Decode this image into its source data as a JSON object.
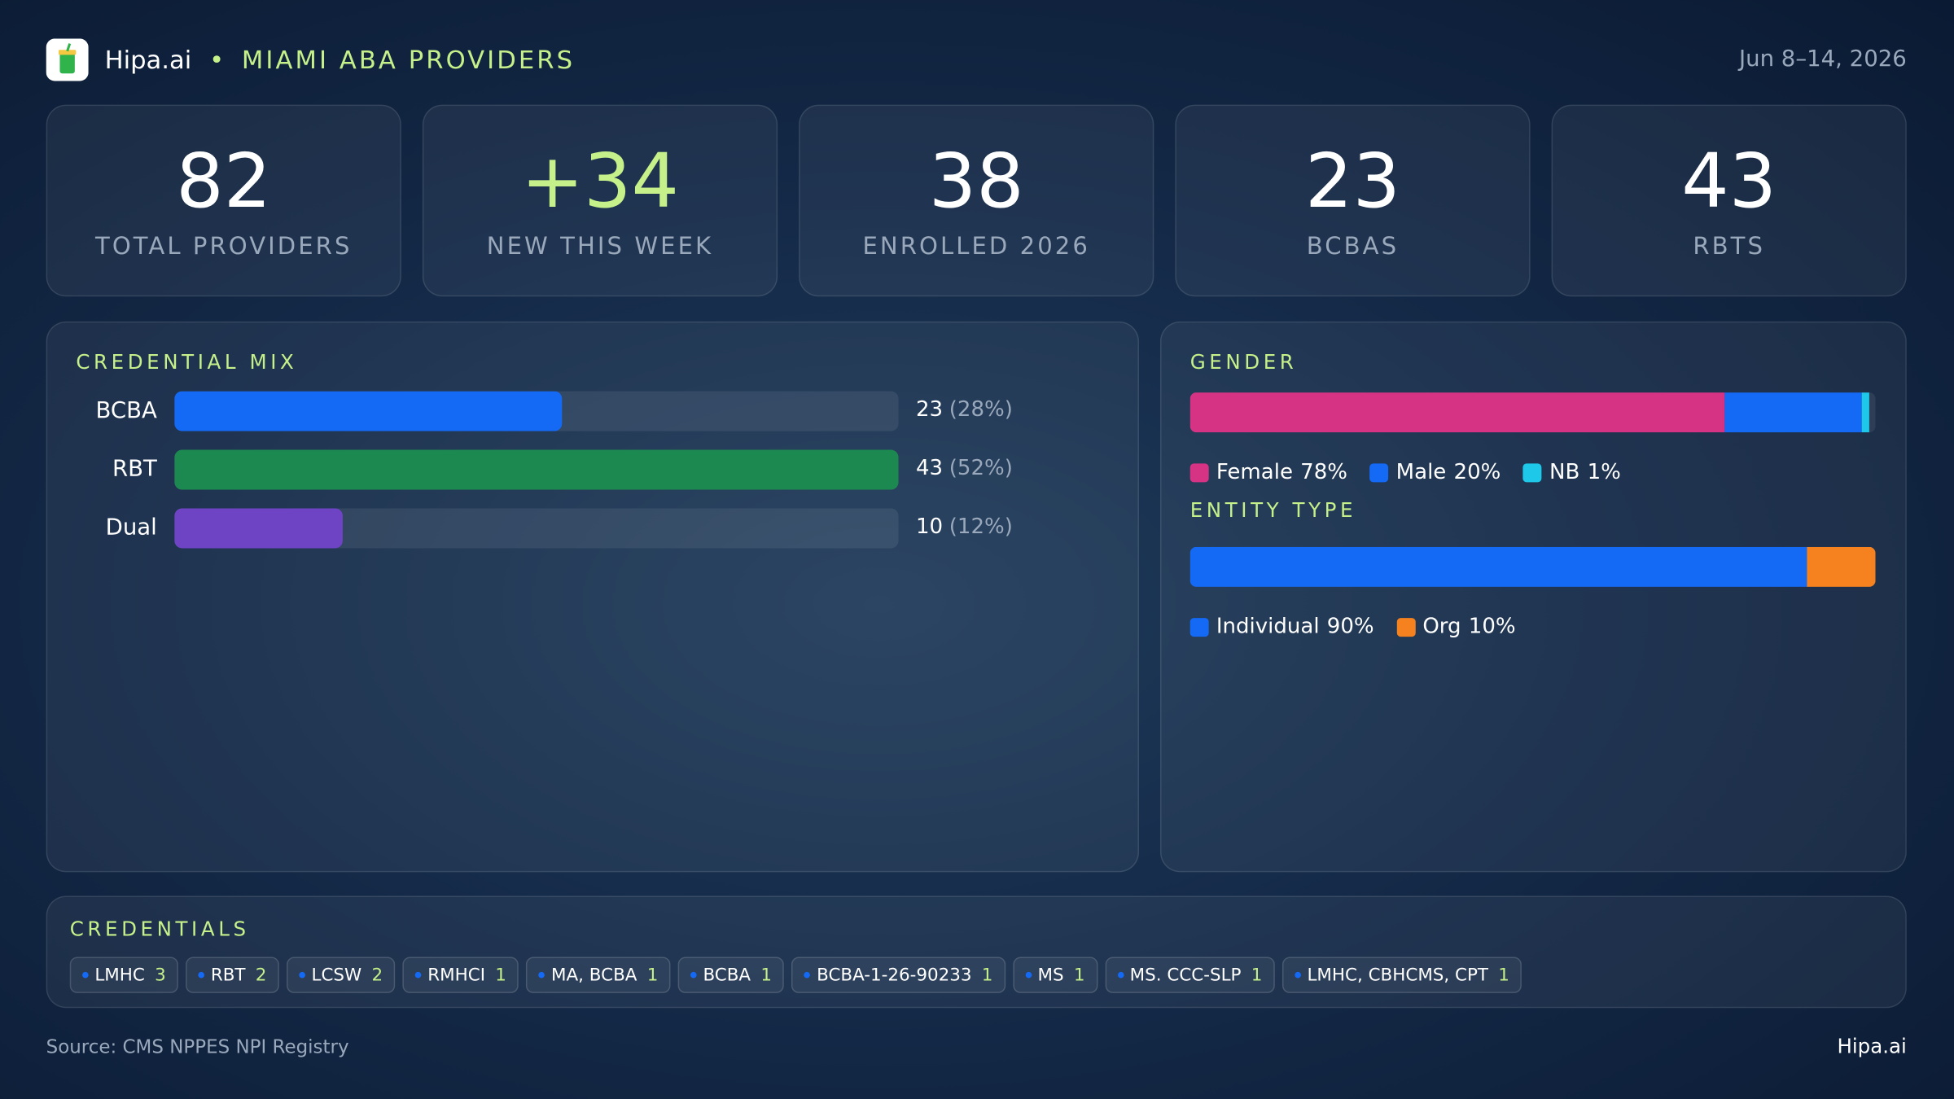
{
  "header": {
    "brand": "Hipa.ai",
    "title": "MIAMI ABA PROVIDERS",
    "date": "Jun 8–14, 2026"
  },
  "kpis": [
    {
      "value": 82,
      "label": "TOTAL PROVIDERS"
    },
    {
      "value": "+34",
      "label": "NEW THIS WEEK"
    },
    {
      "value": 38,
      "label": "ENROLLED 2026"
    },
    {
      "value": 23,
      "label": "BCBAS"
    },
    {
      "value": 43,
      "label": "RBTS"
    }
  ],
  "credential_mix": {
    "type": "bar",
    "title": "CREDENTIAL MIX",
    "categories": [
      "BCBA",
      "RBT",
      "Dual"
    ],
    "values": [
      23,
      43,
      10
    ],
    "share_labels": [
      "(28%)",
      "(52%)",
      "(12%)"
    ],
    "colors": [
      "#1469f5",
      "#1c8a50",
      "#6e44c4"
    ],
    "xlim": [
      0,
      43
    ]
  },
  "gender": {
    "type": "stacked-bar",
    "title": "GENDER",
    "xlim": [
      0,
      100
    ],
    "series": [
      {
        "name": "Female",
        "color": "#d63384",
        "values": [
          78
        ],
        "value_labels": [
          "78%"
        ]
      },
      {
        "name": "Male",
        "color": "#1469f5",
        "values": [
          20
        ],
        "value_labels": [
          "20%"
        ]
      },
      {
        "name": "NB",
        "color": "#1ec8e8",
        "values": [
          1
        ],
        "value_labels": [
          "1%"
        ]
      }
    ]
  },
  "entity_type": {
    "type": "stacked-bar",
    "title": "ENTITY TYPE",
    "xlim": [
      0,
      100
    ],
    "series": [
      {
        "name": "Individual",
        "color": "#1469f5",
        "values": [
          90
        ],
        "value_labels": [
          "90%"
        ]
      },
      {
        "name": "Org",
        "color": "#f5821f",
        "values": [
          10
        ],
        "value_labels": [
          "10%"
        ]
      }
    ]
  },
  "credentials": {
    "title": "CREDENTIALS",
    "items": [
      {
        "name": "LMHC",
        "count": 3
      },
      {
        "name": "RBT",
        "count": 2
      },
      {
        "name": "LCSW",
        "count": 2
      },
      {
        "name": "RMHCI",
        "count": 1
      },
      {
        "name": "MA, BCBA",
        "count": 1
      },
      {
        "name": "BCBA",
        "count": 1
      },
      {
        "name": "BCBA-1-26-90233",
        "count": 1
      },
      {
        "name": "MS",
        "count": 1
      },
      {
        "name": "MS. CCC-SLP",
        "count": 1
      },
      {
        "name": "LMHC, CBHCMS, CPT",
        "count": 1
      }
    ]
  },
  "footer": {
    "source": "Source: CMS NPPES NPI Registry",
    "brand": "Hipa.ai"
  }
}
